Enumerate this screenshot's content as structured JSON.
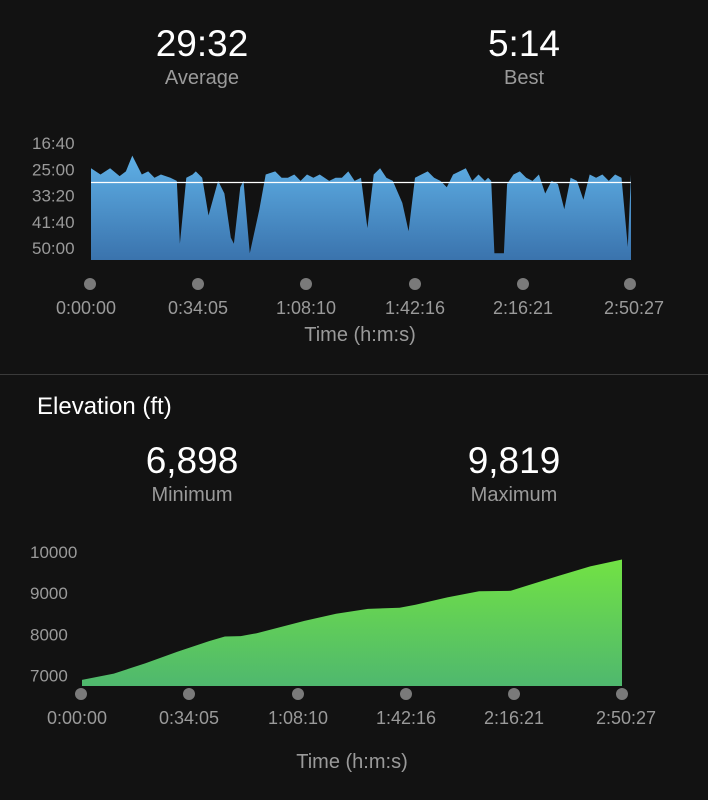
{
  "pace": {
    "average_value": "29:32",
    "average_label": "Average",
    "best_value": "5:14",
    "best_label": "Best"
  },
  "elevation": {
    "section_title": "Elevation (ft)",
    "min_value": "6,898",
    "min_label": "Minimum",
    "max_value": "9,819",
    "max_label": "Maximum"
  },
  "colors": {
    "background": "#121212",
    "pace_fill_top": "#5fb0e6",
    "pace_fill_bottom": "#3a73ad",
    "elevation_fill_top": "#72e244",
    "elevation_fill_bottom": "#4fb86e",
    "axis_dot": "#7a7a7a",
    "label_gray": "#9a9a9a"
  },
  "chart_data": [
    {
      "type": "area",
      "title": "",
      "ylabel": "",
      "xlabel": "Time (h:m:s)",
      "y_reversed": true,
      "ylim": [
        "16:40",
        "50:00"
      ],
      "ytick_labels": [
        "16:40",
        "25:00",
        "33:20",
        "41:40",
        "50:00"
      ],
      "xtick_labels": [
        "0:00:00",
        "0:34:05",
        "1:08:10",
        "1:42:16",
        "2:16:21",
        "2:50:27"
      ],
      "average_line": "29:32",
      "x_minutes": [
        0,
        3,
        6,
        9,
        11,
        13,
        16,
        18,
        20,
        22,
        25,
        27,
        28,
        30,
        32,
        33,
        35,
        37,
        40,
        42,
        44,
        45,
        47,
        48,
        50,
        53,
        55,
        58,
        60,
        62,
        64,
        66,
        68,
        70,
        72,
        75,
        77,
        79,
        81,
        83,
        85,
        87,
        89,
        91,
        93,
        95,
        98,
        100,
        102,
        104,
        106,
        108,
        110,
        112,
        114,
        116,
        118,
        120,
        122,
        124,
        125,
        126,
        127,
        128,
        129,
        130,
        131,
        133,
        135,
        137,
        139,
        141,
        143,
        145,
        147,
        149,
        151,
        153,
        155,
        157,
        159,
        161,
        163,
        165,
        167,
        169,
        170
      ],
      "pace_minutes": [
        25,
        27,
        25,
        27.5,
        26,
        21,
        27,
        26,
        28,
        27,
        28,
        29,
        49,
        28,
        27,
        26,
        28,
        40,
        29,
        33,
        47,
        49,
        31,
        29,
        52,
        38,
        27,
        26,
        28,
        28,
        27,
        29,
        27,
        28,
        27,
        29,
        28,
        28,
        26,
        29,
        28,
        44,
        27,
        25,
        28,
        29,
        36,
        45,
        28,
        27,
        26,
        28,
        29,
        31,
        27,
        26,
        25,
        29,
        27,
        29,
        28,
        29,
        52,
        52,
        52,
        52,
        30,
        27,
        26,
        28,
        29,
        27,
        33,
        29,
        30,
        38,
        28,
        29,
        35,
        27,
        28,
        27,
        29,
        27,
        28,
        50,
        27
      ]
    },
    {
      "type": "area",
      "title": "",
      "ylabel": "",
      "xlabel": "Time (h:m:s)",
      "ylim": [
        6750,
        10000
      ],
      "ytick_labels": [
        "10000",
        "9000",
        "8000",
        "7000"
      ],
      "xtick_labels": [
        "0:00:00",
        "0:34:05",
        "1:08:10",
        "1:42:16",
        "2:16:21",
        "2:50:27"
      ],
      "x_minutes": [
        0,
        10,
        20,
        30,
        40,
        45,
        50,
        55,
        60,
        70,
        80,
        90,
        100,
        105,
        115,
        125,
        135,
        140,
        150,
        160,
        170
      ],
      "elevation_ft": [
        6898,
        7050,
        7300,
        7580,
        7840,
        7950,
        7960,
        8030,
        8130,
        8330,
        8500,
        8620,
        8650,
        8720,
        8900,
        9050,
        9060,
        9180,
        9420,
        9650,
        9819
      ]
    }
  ]
}
